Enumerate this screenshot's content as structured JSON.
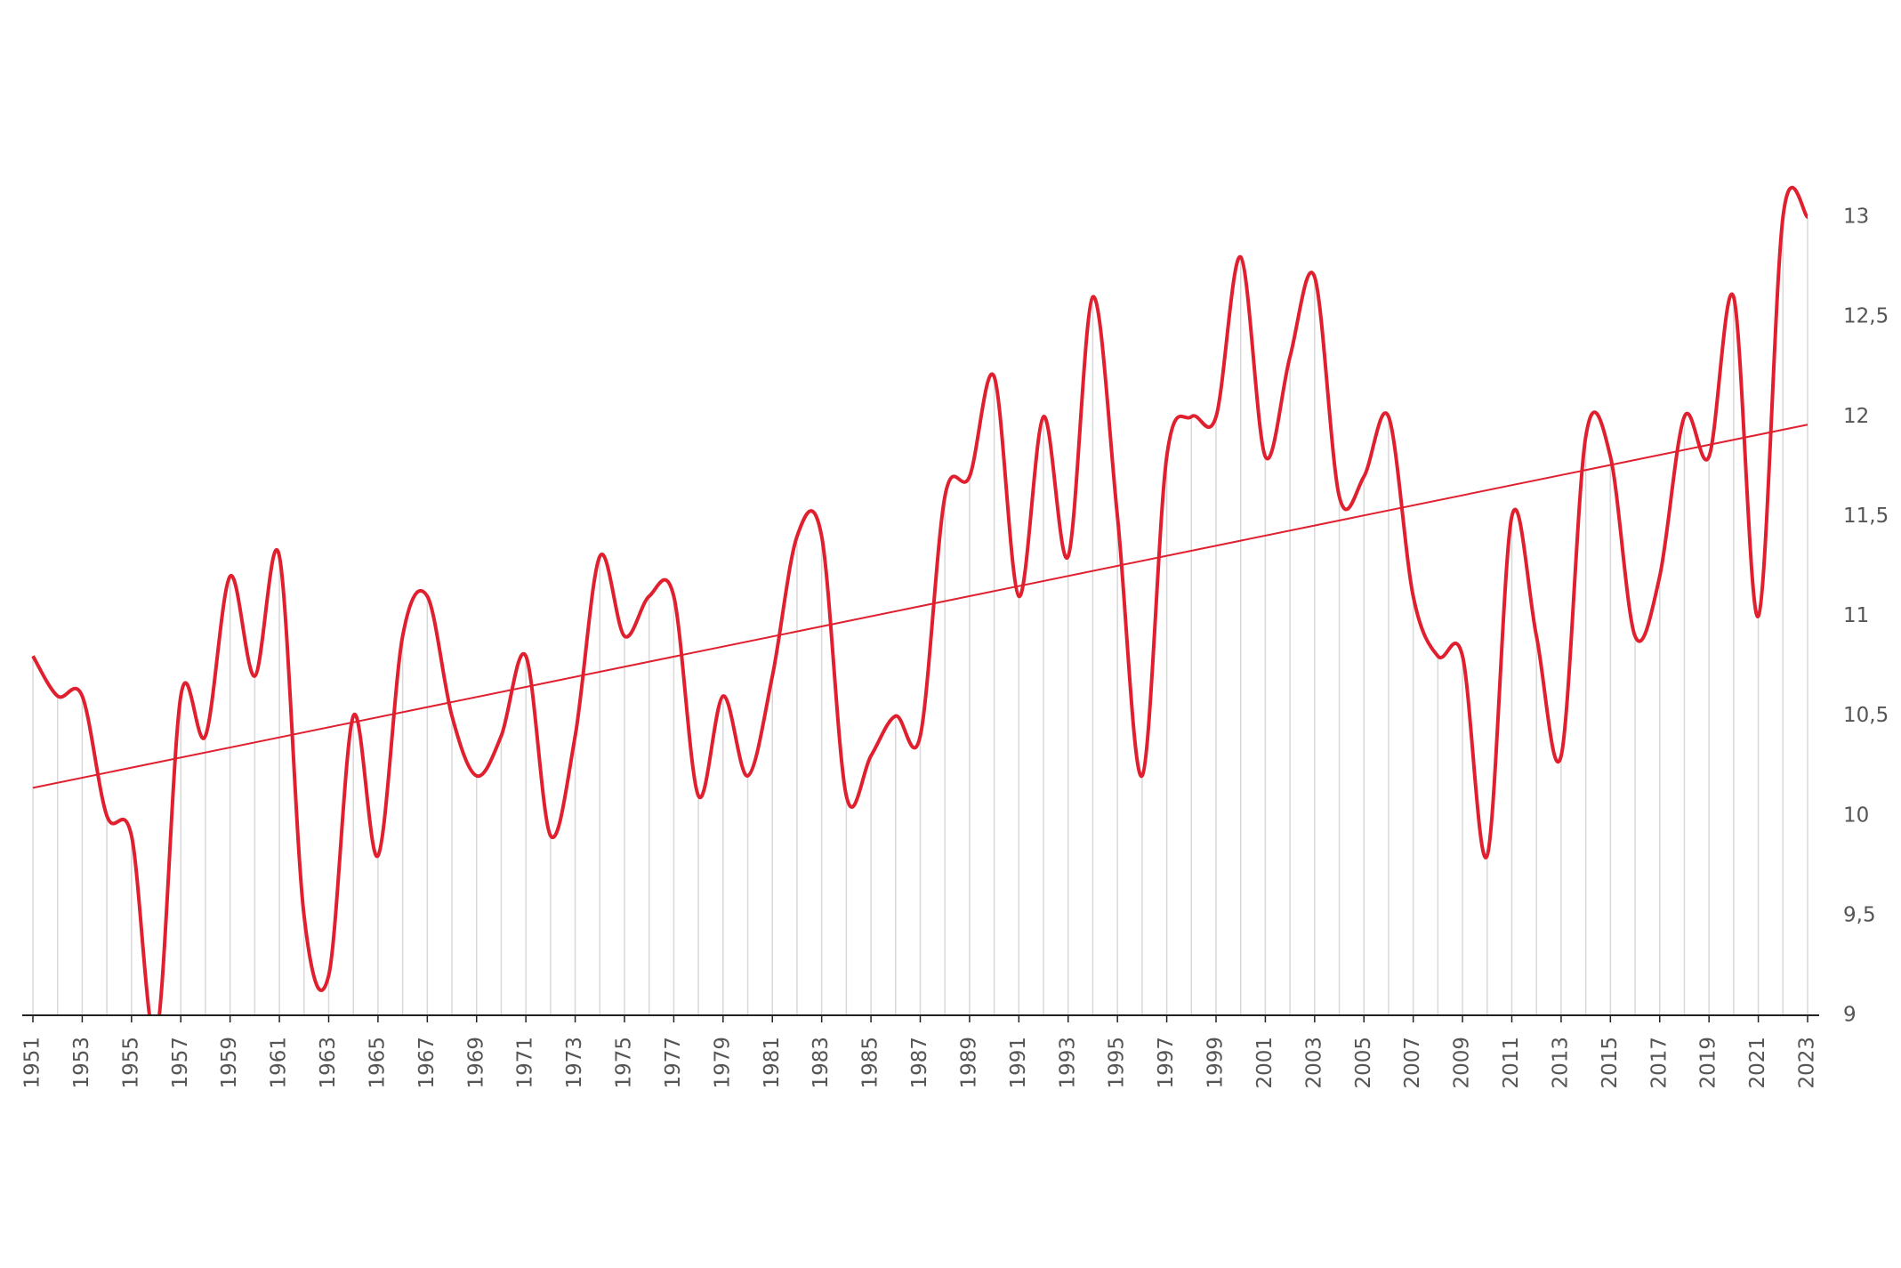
{
  "chart_data": {
    "type": "line",
    "x": [
      1951,
      1952,
      1953,
      1954,
      1955,
      1956,
      1957,
      1958,
      1959,
      1960,
      1961,
      1962,
      1963,
      1964,
      1965,
      1966,
      1967,
      1968,
      1969,
      1970,
      1971,
      1972,
      1973,
      1974,
      1975,
      1976,
      1977,
      1978,
      1979,
      1980,
      1981,
      1982,
      1983,
      1984,
      1985,
      1986,
      1987,
      1988,
      1989,
      1990,
      1991,
      1992,
      1993,
      1994,
      1995,
      1996,
      1997,
      1998,
      1999,
      2000,
      2001,
      2002,
      2003,
      2004,
      2005,
      2006,
      2007,
      2008,
      2009,
      2010,
      2011,
      2012,
      2013,
      2014,
      2015,
      2016,
      2017,
      2018,
      2019,
      2020,
      2021,
      2022,
      2023
    ],
    "series": [
      {
        "color": "#e0202e",
        "values": [
          10.8,
          10.6,
          10.6,
          10.0,
          9.9,
          8.9,
          10.6,
          10.4,
          11.2,
          10.7,
          11.3,
          9.5,
          9.2,
          10.5,
          9.8,
          10.9,
          11.1,
          10.5,
          10.2,
          10.4,
          10.8,
          9.9,
          10.4,
          11.3,
          10.9,
          11.1,
          11.1,
          10.1,
          10.6,
          10.2,
          10.7,
          11.4,
          11.4,
          10.1,
          10.3,
          10.5,
          10.4,
          11.6,
          11.7,
          12.2,
          11.1,
          12.0,
          11.3,
          12.6,
          11.5,
          10.2,
          11.8,
          12.0,
          12.0,
          12.8,
          11.8,
          12.3,
          12.7,
          11.6,
          11.7,
          12.0,
          11.1,
          10.8,
          10.8,
          9.8,
          11.5,
          10.9,
          10.3,
          11.9,
          11.8,
          10.9,
          11.2,
          12.0,
          11.8,
          12.6,
          11.0,
          13.0,
          13.0
        ]
      }
    ],
    "trend": {
      "color": "#e0202e",
      "x": [
        1951,
        2023
      ],
      "values": [
        10.14,
        11.96
      ]
    },
    "xlim": [
      1951,
      2023
    ],
    "xticks": [
      1951,
      1953,
      1955,
      1957,
      1959,
      1961,
      1963,
      1965,
      1967,
      1969,
      1971,
      1973,
      1975,
      1977,
      1979,
      1981,
      1983,
      1985,
      1987,
      1989,
      1991,
      1993,
      1995,
      1997,
      1999,
      2001,
      2003,
      2005,
      2007,
      2009,
      2011,
      2013,
      2015,
      2017,
      2019,
      2021,
      2023
    ],
    "ylim": [
      9,
      13
    ],
    "yticks": [
      9,
      {
        "value": 9.5,
        "label": "9,5"
      },
      10,
      {
        "value": 10.5,
        "label": "10,5"
      },
      11,
      {
        "value": 11.5,
        "label": "11,5"
      },
      12,
      {
        "value": 12.5,
        "label": "12,5"
      },
      13
    ],
    "grid": true
  }
}
